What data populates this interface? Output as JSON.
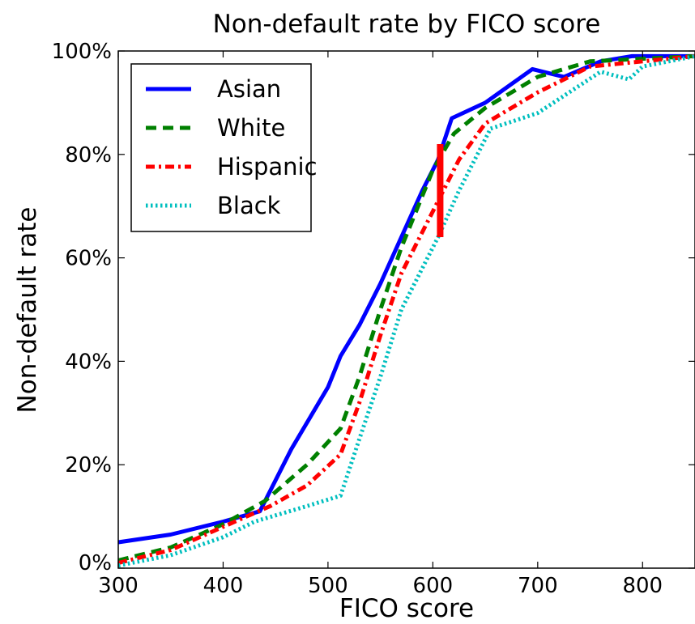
{
  "chart_data": {
    "type": "line",
    "title": "Non-default rate by FICO score",
    "xlabel": "FICO score",
    "ylabel": "Non-default rate",
    "xlim": [
      300,
      850
    ],
    "ylim": [
      0,
      100
    ],
    "x_ticks": [
      300,
      400,
      500,
      600,
      700,
      800
    ],
    "x_tick_labels": [
      "300",
      "400",
      "500",
      "600",
      "700",
      "800"
    ],
    "y_ticks": [
      0,
      20,
      40,
      60,
      80,
      100
    ],
    "y_tick_labels": [
      "0%",
      "20%",
      "40%",
      "60%",
      "80%",
      "100%"
    ],
    "grid": false,
    "legend_position": "top-left",
    "series": [
      {
        "name": "Asian",
        "color": "#0000ff",
        "dash": "solid",
        "x": [
          300,
          350,
          400,
          435,
          465,
          500,
          512,
          530,
          550,
          570,
          590,
          605,
          618,
          650,
          695,
          725,
          760,
          790,
          850
        ],
        "y": [
          5,
          6.5,
          9,
          11,
          23,
          35,
          41,
          47,
          55,
          64,
          73,
          79,
          87,
          90,
          96.5,
          95,
          98,
          99,
          99
        ]
      },
      {
        "name": "White",
        "color": "#008000",
        "dash": "dashed",
        "x": [
          300,
          350,
          400,
          440,
          480,
          512,
          530,
          550,
          570,
          600,
          620,
          650,
          700,
          750,
          850
        ],
        "y": [
          1.5,
          4,
          8.5,
          13,
          20,
          27,
          37,
          50,
          62,
          77,
          84,
          89,
          95,
          98,
          99
        ]
      },
      {
        "name": "Hispanic",
        "color": "#ff0000",
        "dash": "dashdot",
        "x": [
          300,
          350,
          400,
          445,
          480,
          512,
          530,
          550,
          570,
          600,
          625,
          650,
          700,
          750,
          850
        ],
        "y": [
          1,
          3.5,
          8,
          12,
          16,
          22,
          32,
          45,
          57,
          69,
          79,
          86,
          92,
          97,
          99
        ]
      },
      {
        "name": "Black",
        "color": "#00bfbf",
        "dash": "dotted",
        "x": [
          300,
          350,
          400,
          430,
          480,
          512,
          530,
          550,
          570,
          605,
          625,
          655,
          700,
          730,
          760,
          787,
          800,
          850
        ],
        "y": [
          0.5,
          2.5,
          6,
          9,
          12,
          14,
          25,
          37,
          50,
          64,
          73,
          85,
          88,
          92,
          96,
          94.5,
          97,
          99
        ]
      }
    ],
    "annotations": [
      {
        "type": "vertical-segment",
        "color": "#ff0000",
        "x": 607,
        "y_from": 64,
        "y_to": 82
      }
    ]
  }
}
